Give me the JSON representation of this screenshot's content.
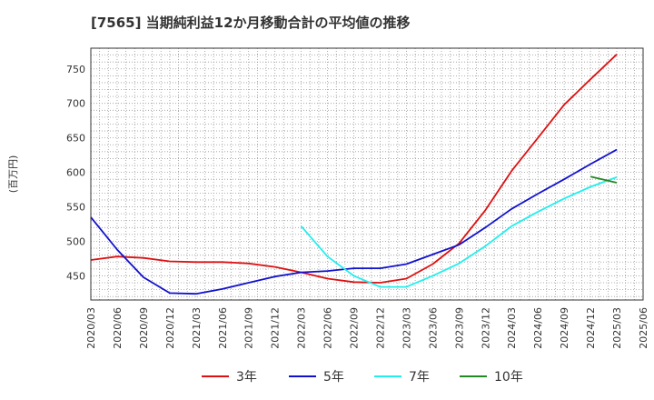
{
  "chart_data": {
    "type": "line",
    "title": "[7565]  当期純利益12か月移動合計の平均値の推移",
    "ylabel": "(百万円)",
    "xlabel": "",
    "ylim": [
      415,
      780
    ],
    "yticks": [
      450,
      500,
      550,
      600,
      650,
      700,
      750
    ],
    "x_categories": [
      "2020/03",
      "2020/06",
      "2020/09",
      "2020/12",
      "2021/03",
      "2021/06",
      "2021/09",
      "2021/12",
      "2022/03",
      "2022/06",
      "2022/09",
      "2022/12",
      "2023/03",
      "2023/06",
      "2023/09",
      "2023/12",
      "2024/03",
      "2024/06",
      "2024/09",
      "2024/12",
      "2025/03",
      "2025/06"
    ],
    "legend_position": "bottom",
    "grid": true,
    "series": [
      {
        "name": "3年",
        "color": "#dd1111",
        "values": [
          [
            "2020/03",
            473
          ],
          [
            "2020/06",
            478
          ],
          [
            "2020/09",
            476
          ],
          [
            "2020/12",
            471
          ],
          [
            "2021/03",
            470
          ],
          [
            "2021/06",
            470
          ],
          [
            "2021/09",
            468
          ],
          [
            "2021/12",
            463
          ],
          [
            "2022/03",
            455
          ],
          [
            "2022/06",
            446
          ],
          [
            "2022/09",
            441
          ],
          [
            "2022/12",
            440
          ],
          [
            "2023/03",
            446
          ],
          [
            "2023/06",
            467
          ],
          [
            "2023/09",
            497
          ],
          [
            "2023/12",
            545
          ],
          [
            "2024/03",
            602
          ],
          [
            "2024/06",
            650
          ],
          [
            "2024/09",
            698
          ],
          [
            "2024/12",
            735
          ],
          [
            "2025/03",
            771
          ]
        ]
      },
      {
        "name": "5年",
        "color": "#1111cc",
        "values": [
          [
            "2020/03",
            535
          ],
          [
            "2020/06",
            488
          ],
          [
            "2020/09",
            448
          ],
          [
            "2020/12",
            425
          ],
          [
            "2021/03",
            424
          ],
          [
            "2021/06",
            431
          ],
          [
            "2021/09",
            440
          ],
          [
            "2021/12",
            449
          ],
          [
            "2022/03",
            455
          ],
          [
            "2022/06",
            457
          ],
          [
            "2022/09",
            461
          ],
          [
            "2022/12",
            461
          ],
          [
            "2023/03",
            467
          ],
          [
            "2023/06",
            481
          ],
          [
            "2023/09",
            495
          ],
          [
            "2023/12",
            520
          ],
          [
            "2024/03",
            547
          ],
          [
            "2024/06",
            569
          ],
          [
            "2024/09",
            590
          ],
          [
            "2024/12",
            612
          ],
          [
            "2025/03",
            633
          ]
        ]
      },
      {
        "name": "7年",
        "color": "#22eeee",
        "values": [
          [
            "2022/03",
            522
          ],
          [
            "2022/06",
            478
          ],
          [
            "2022/09",
            450
          ],
          [
            "2022/12",
            434
          ],
          [
            "2023/03",
            434
          ],
          [
            "2023/06",
            450
          ],
          [
            "2023/09",
            468
          ],
          [
            "2023/12",
            493
          ],
          [
            "2024/03",
            522
          ],
          [
            "2024/06",
            543
          ],
          [
            "2024/09",
            562
          ],
          [
            "2024/12",
            579
          ],
          [
            "2025/03",
            593
          ]
        ]
      },
      {
        "name": "10年",
        "color": "#228822",
        "values": [
          [
            "2024/12",
            594
          ],
          [
            "2025/03",
            585
          ]
        ]
      }
    ]
  }
}
